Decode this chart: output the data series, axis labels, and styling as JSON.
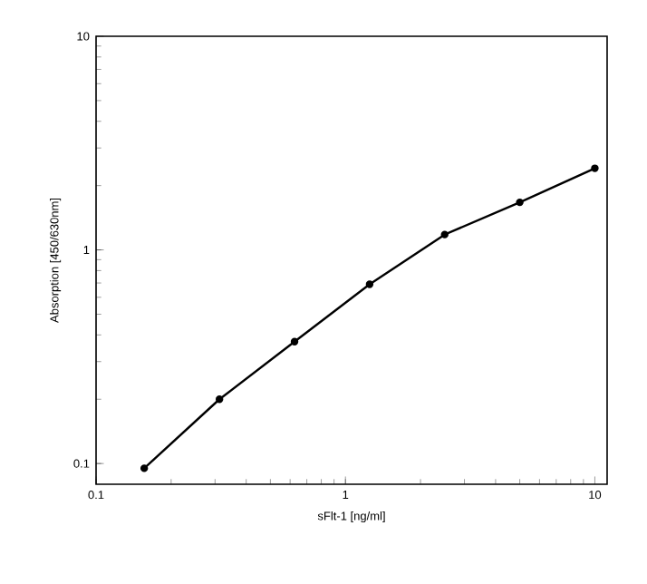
{
  "chart_data": {
    "type": "line",
    "xlabel": "sFlt-1 [ng/ml]",
    "ylabel": "Absorption [450/630nm]",
    "log": "xy",
    "marker": "circle",
    "line_style": "solid",
    "x": [
      0.156,
      0.3125,
      0.625,
      1.25,
      2.5,
      5,
      10
    ],
    "series": [
      {
        "color": "#000000",
        "values": [
          0.095,
          0.2,
          0.372,
          0.69,
          1.18,
          1.67,
          2.41
        ]
      }
    ],
    "xlim": [
      0.1,
      11.2
    ],
    "ylim": [
      0.08,
      10
    ],
    "xticks": [
      0.1,
      1,
      10
    ],
    "yticks": [
      0.1,
      1,
      10
    ]
  }
}
